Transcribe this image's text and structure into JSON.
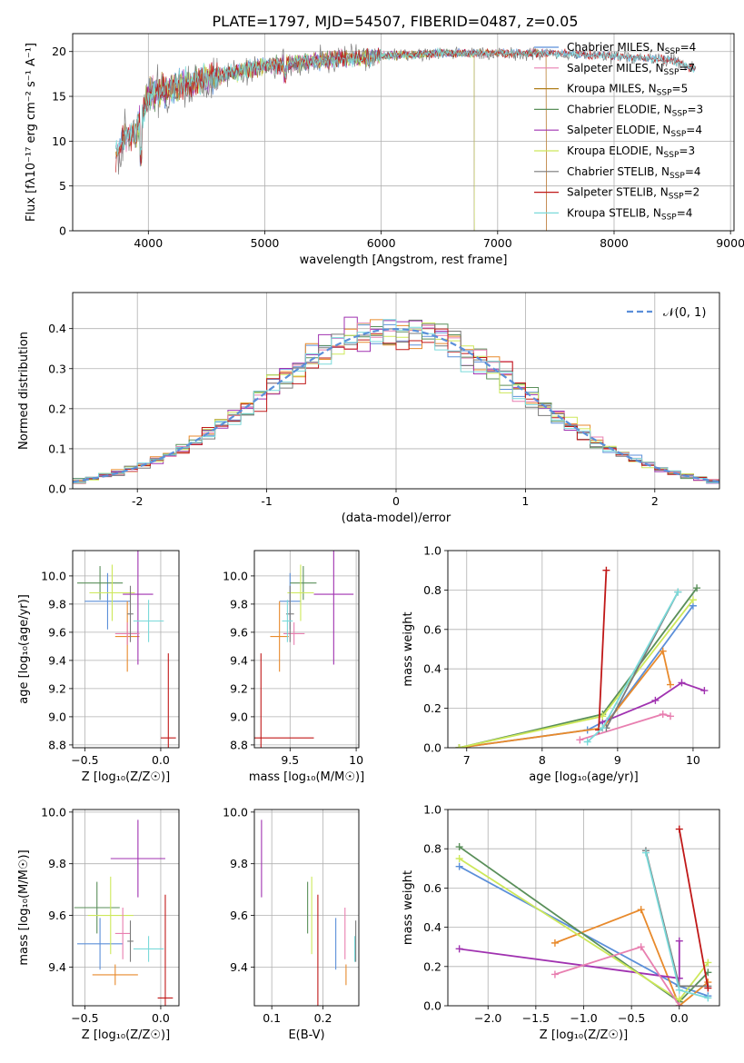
{
  "figure_title": "PLATE=1797, MJD=54507, FIBERID=0487, z=0.05",
  "colors": [
    "#5b8fd9",
    "#e88a2c",
    "#5a8f5a",
    "#a032b0",
    "#cde85a",
    "#e87fb0",
    "#7a7a7a",
    "#c01818",
    "#7adada"
  ],
  "chart_data": [
    {
      "id": "spectrum",
      "type": "line",
      "xlabel": "wavelength [Angstrom, rest frame]",
      "ylabel": "Flux [fλ10⁻¹⁷ erg cm⁻² s⁻¹ A⁻¹]",
      "xlim": [
        3350,
        9030
      ],
      "ylim": [
        0,
        22
      ],
      "xticks": [
        4000,
        5000,
        6000,
        7000,
        8000,
        9000
      ],
      "yticks": [
        0,
        5,
        10,
        15,
        20
      ],
      "legend_position": "right",
      "continuum": {
        "x": [
          3700,
          3800,
          3900,
          4000,
          4200,
          4500,
          5000,
          5500,
          6000,
          6500,
          7000,
          7500,
          8000,
          8500,
          8700
        ],
        "y": [
          8.0,
          10.5,
          11.0,
          15.0,
          16.0,
          17.0,
          18.5,
          19.0,
          19.5,
          19.8,
          19.8,
          19.8,
          19.5,
          19.0,
          18.0
        ]
      },
      "series": [
        {
          "name": "Chabrier MILES, N",
          "sub": "SSP",
          "suffix": "=4",
          "color": "#5b8fd9",
          "start": 3720,
          "end": 8700
        },
        {
          "name": "Salpeter MILES, N",
          "sub": "SSP",
          "suffix": "=7",
          "color": "#e87fb0",
          "start": 3720,
          "end": 7420
        },
        {
          "name": "Kroupa MILES, N",
          "sub": "SSP",
          "suffix": "=5",
          "color": "#b07f1a",
          "start": 3720,
          "end": 7420
        },
        {
          "name": "Chabrier ELODIE, N",
          "sub": "SSP",
          "suffix": "=3",
          "color": "#5a8f5a",
          "start": 3900,
          "end": 6800
        },
        {
          "name": "Salpeter ELODIE, N",
          "sub": "SSP",
          "suffix": "=4",
          "color": "#a032b0",
          "start": 3900,
          "end": 6800
        },
        {
          "name": "Kroupa ELODIE, N",
          "sub": "SSP",
          "suffix": "=3",
          "color": "#cde85a",
          "start": 3900,
          "end": 6800
        },
        {
          "name": "Chabrier STELIB, N",
          "sub": "SSP",
          "suffix": "=4",
          "color": "#7a7a7a",
          "start": 3720,
          "end": 8700
        },
        {
          "name": "Salpeter STELIB, N",
          "sub": "SSP",
          "suffix": "=2",
          "color": "#c01818",
          "start": 3720,
          "end": 8700
        },
        {
          "name": "Kroupa STELIB, N",
          "sub": "SSP",
          "suffix": "=4",
          "color": "#7adada",
          "start": 3720,
          "end": 8700
        }
      ]
    },
    {
      "id": "residuals",
      "type": "histogram",
      "xlabel": "(data-model)/error",
      "ylabel": "Normed distribution",
      "xlim": [
        -2.5,
        2.5
      ],
      "ylim": [
        0,
        0.49
      ],
      "xticks": [
        -2,
        -1,
        0,
        1,
        2
      ],
      "yticks": [
        0.0,
        0.1,
        0.2,
        0.3,
        0.4
      ],
      "grid": true,
      "bin_width": 0.1,
      "legend": "𝒩(0, 1)",
      "legend_position": "top-right",
      "gauss_color": "#5b8fd9"
    },
    {
      "id": "age_z",
      "type": "errorbar",
      "xlabel": "Z [log₁₀(Z/Z☉)]",
      "ylabel": "age  [log₁₀(age/yr)]",
      "xlim": [
        -0.58,
        0.12
      ],
      "ylim": [
        8.78,
        10.18
      ],
      "xticks": [
        -0.5,
        0.0
      ],
      "xticklabels": [
        "−0.5",
        "0.0"
      ],
      "yticks": [
        8.8,
        9.0,
        9.2,
        9.4,
        9.6,
        9.8,
        10.0
      ],
      "points": [
        {
          "x": -0.35,
          "xe": 0.15,
          "y": 9.82,
          "ye": 0.2,
          "color": "#5b8fd9"
        },
        {
          "x": -0.22,
          "xe": 0.08,
          "y": 9.57,
          "ye": 0.25,
          "color": "#e88a2c"
        },
        {
          "x": -0.4,
          "xe": 0.15,
          "y": 9.95,
          "ye": 0.12,
          "color": "#5a8f5a"
        },
        {
          "x": -0.15,
          "xe": 0.1,
          "y": 9.87,
          "ye": 0.5,
          "color": "#a032b0"
        },
        {
          "x": -0.32,
          "xe": 0.15,
          "y": 9.88,
          "ye": 0.2,
          "color": "#cde85a"
        },
        {
          "x": -0.22,
          "xe": 0.08,
          "y": 9.59,
          "ye": 0.08,
          "color": "#e87fb0"
        },
        {
          "x": -0.2,
          "xe": 0.02,
          "y": 9.73,
          "ye": 0.2,
          "color": "#7a7a7a"
        },
        {
          "x": 0.05,
          "xe": 0.05,
          "y": 8.85,
          "ye": 0.6,
          "color": "#c01818"
        },
        {
          "x": -0.08,
          "xe": 0.1,
          "y": 9.68,
          "ye": 0.15,
          "color": "#7adada"
        }
      ]
    },
    {
      "id": "age_mass",
      "type": "errorbar",
      "xlabel": "mass [log₁₀(M/M☉)]",
      "ylabel": "",
      "xlim": [
        9.23,
        10.02
      ],
      "ylim": [
        8.78,
        10.18
      ],
      "xticks": [
        9.5,
        10.0
      ],
      "yticks": [
        8.8,
        9.0,
        9.2,
        9.4,
        9.6,
        9.8,
        10.0
      ],
      "points": [
        {
          "x": 9.5,
          "xe": 0.08,
          "y": 9.82,
          "ye": 0.2,
          "color": "#5b8fd9"
        },
        {
          "x": 9.42,
          "xe": 0.07,
          "y": 9.57,
          "ye": 0.25,
          "color": "#e88a2c"
        },
        {
          "x": 9.6,
          "xe": 0.1,
          "y": 9.95,
          "ye": 0.12,
          "color": "#5a8f5a"
        },
        {
          "x": 9.83,
          "xe": 0.15,
          "y": 9.87,
          "ye": 0.5,
          "color": "#a032b0"
        },
        {
          "x": 9.58,
          "xe": 0.1,
          "y": 9.88,
          "ye": 0.2,
          "color": "#cde85a"
        },
        {
          "x": 9.53,
          "xe": 0.08,
          "y": 9.59,
          "ye": 0.08,
          "color": "#e87fb0"
        },
        {
          "x": 9.5,
          "xe": 0.03,
          "y": 9.73,
          "ye": 0.2,
          "color": "#7a7a7a"
        },
        {
          "x": 9.28,
          "xe": 0.4,
          "y": 8.85,
          "ye": 0.6,
          "color": "#c01818"
        },
        {
          "x": 9.48,
          "xe": 0.04,
          "y": 9.68,
          "ye": 0.15,
          "color": "#7adada"
        }
      ]
    },
    {
      "id": "mass_z",
      "type": "errorbar",
      "xlabel": "Z [log₁₀(Z/Z☉)]",
      "ylabel": "mass [log₁₀(M/M☉)]",
      "xlim": [
        -0.58,
        0.12
      ],
      "ylim": [
        9.25,
        10.01
      ],
      "xticks": [
        -0.5,
        0.0
      ],
      "xticklabels": [
        "−0.5",
        "0.0"
      ],
      "yticks": [
        9.4,
        9.6,
        9.8,
        10.0
      ],
      "points": [
        {
          "x": -0.4,
          "xe": 0.15,
          "y": 9.49,
          "ye": 0.1,
          "color": "#5b8fd9"
        },
        {
          "x": -0.3,
          "xe": 0.15,
          "y": 9.37,
          "ye": 0.04,
          "color": "#e88a2c"
        },
        {
          "x": -0.42,
          "xe": 0.15,
          "y": 9.63,
          "ye": 0.1,
          "color": "#5a8f5a"
        },
        {
          "x": -0.15,
          "xe": 0.18,
          "y": 9.82,
          "ye": 0.15,
          "color": "#a032b0"
        },
        {
          "x": -0.33,
          "xe": 0.15,
          "y": 9.6,
          "ye": 0.15,
          "color": "#cde85a"
        },
        {
          "x": -0.25,
          "xe": 0.05,
          "y": 9.53,
          "ye": 0.1,
          "color": "#e87fb0"
        },
        {
          "x": -0.2,
          "xe": 0.02,
          "y": 9.5,
          "ye": 0.08,
          "color": "#7a7a7a"
        },
        {
          "x": 0.03,
          "xe": 0.05,
          "y": 9.28,
          "ye": 0.4,
          "color": "#c01818"
        },
        {
          "x": -0.08,
          "xe": 0.1,
          "y": 9.47,
          "ye": 0.05,
          "color": "#7adada"
        }
      ]
    },
    {
      "id": "mass_ebv",
      "type": "errorbar",
      "xlabel": "E(B-V)",
      "ylabel": "",
      "xlim": [
        0.066,
        0.27
      ],
      "ylim": [
        9.25,
        10.01
      ],
      "xticks": [
        0.1,
        0.2
      ],
      "yticks": [
        9.4,
        9.6,
        9.8,
        10.0
      ],
      "points": [
        {
          "x": 0.225,
          "xe": 0.0,
          "y": 9.49,
          "ye": 0.1,
          "color": "#5b8fd9"
        },
        {
          "x": 0.245,
          "xe": 0.0,
          "y": 9.37,
          "ye": 0.04,
          "color": "#e88a2c"
        },
        {
          "x": 0.17,
          "xe": 0.0,
          "y": 9.63,
          "ye": 0.1,
          "color": "#5a8f5a"
        },
        {
          "x": 0.08,
          "xe": 0.0,
          "y": 9.82,
          "ye": 0.15,
          "color": "#a032b0"
        },
        {
          "x": 0.178,
          "xe": 0.0,
          "y": 9.6,
          "ye": 0.15,
          "color": "#cde85a"
        },
        {
          "x": 0.243,
          "xe": 0.0,
          "y": 9.53,
          "ye": 0.1,
          "color": "#e87fb0"
        },
        {
          "x": 0.264,
          "xe": 0.0,
          "y": 9.5,
          "ye": 0.08,
          "color": "#7a7a7a"
        },
        {
          "x": 0.19,
          "xe": 0.0,
          "y": 9.28,
          "ye": 0.4,
          "color": "#c01818"
        },
        {
          "x": 0.262,
          "xe": 0.0,
          "y": 9.47,
          "ye": 0.05,
          "color": "#7adada"
        }
      ]
    },
    {
      "id": "weight_age",
      "type": "line",
      "xlabel": "age  [log₁₀(age/yr)]",
      "ylabel": "mass weight",
      "xlim": [
        6.75,
        10.35
      ],
      "ylim": [
        0,
        1.0
      ],
      "xticks": [
        7,
        8,
        9,
        10
      ],
      "yticks": [
        0.0,
        0.2,
        0.4,
        0.6,
        0.8,
        1.0
      ],
      "grid": true,
      "series": [
        {
          "color": "#5b8fd9",
          "x": [
            6.9,
            8.6,
            8.9,
            10.0
          ],
          "y": [
            0.0,
            0.09,
            0.15,
            0.72
          ]
        },
        {
          "color": "#e88a2c",
          "x": [
            6.9,
            8.8,
            9.6,
            9.7
          ],
          "y": [
            0.0,
            0.1,
            0.49,
            0.32
          ]
        },
        {
          "color": "#5a8f5a",
          "x": [
            6.9,
            8.8,
            10.05
          ],
          "y": [
            0.0,
            0.17,
            0.81
          ]
        },
        {
          "color": "#a032b0",
          "x": [
            8.8,
            9.5,
            9.85,
            10.15
          ],
          "y": [
            0.13,
            0.24,
            0.33,
            0.29
          ]
        },
        {
          "color": "#cde85a",
          "x": [
            6.9,
            8.8,
            10.0
          ],
          "y": [
            0.0,
            0.16,
            0.75
          ]
        },
        {
          "color": "#e87fb0",
          "x": [
            8.5,
            9.6,
            9.7
          ],
          "y": [
            0.04,
            0.17,
            0.16
          ]
        },
        {
          "color": "#7a7a7a",
          "x": [
            8.85,
            9.8
          ],
          "y": [
            0.1,
            0.79
          ]
        },
        {
          "color": "#c01818",
          "x": [
            8.75,
            8.85
          ],
          "y": [
            0.09,
            0.9
          ]
        },
        {
          "color": "#7adada",
          "x": [
            8.6,
            8.8,
            9.8
          ],
          "y": [
            0.03,
            0.1,
            0.79
          ]
        }
      ]
    },
    {
      "id": "weight_z",
      "type": "line",
      "xlabel": "Z [log₁₀(Z/Z☉)]",
      "ylabel": "mass weight",
      "xlim": [
        -2.42,
        0.42
      ],
      "ylim": [
        0,
        1.0
      ],
      "xticks": [
        -2.0,
        -1.5,
        -1.0,
        -0.5,
        0.0
      ],
      "xticklabels": [
        "−2.0",
        "−1.5",
        "−1.0",
        "−0.5",
        "0.0"
      ],
      "yticks": [
        0.0,
        0.2,
        0.4,
        0.6,
        0.8,
        1.0
      ],
      "grid": true,
      "series": [
        {
          "color": "#5b8fd9",
          "x": [
            -2.3,
            0.0,
            0.3
          ],
          "y": [
            0.71,
            0.1,
            0.05
          ]
        },
        {
          "color": "#e88a2c",
          "x": [
            -1.3,
            -0.4,
            0.0,
            0.3
          ],
          "y": [
            0.32,
            0.49,
            0.0,
            0.12
          ]
        },
        {
          "color": "#5a8f5a",
          "x": [
            -2.3,
            0.0,
            0.3
          ],
          "y": [
            0.81,
            0.02,
            0.17
          ]
        },
        {
          "color": "#a032b0",
          "x": [
            -2.3,
            0.0,
            0.0
          ],
          "y": [
            0.29,
            0.14,
            0.33
          ]
        },
        {
          "color": "#cde85a",
          "x": [
            -2.3,
            0.0,
            0.3
          ],
          "y": [
            0.75,
            0.03,
            0.22
          ]
        },
        {
          "color": "#e87fb0",
          "x": [
            -1.3,
            -0.4,
            0.0
          ],
          "y": [
            0.16,
            0.3,
            0.0
          ]
        },
        {
          "color": "#7a7a7a",
          "x": [
            -0.35,
            0.0,
            0.3
          ],
          "y": [
            0.79,
            0.1,
            0.1
          ]
        },
        {
          "color": "#c01818",
          "x": [
            0.0,
            0.3
          ],
          "y": [
            0.9,
            0.09
          ]
        },
        {
          "color": "#7adada",
          "x": [
            -0.35,
            0.0,
            0.3
          ],
          "y": [
            0.78,
            0.08,
            0.04
          ]
        }
      ]
    }
  ]
}
